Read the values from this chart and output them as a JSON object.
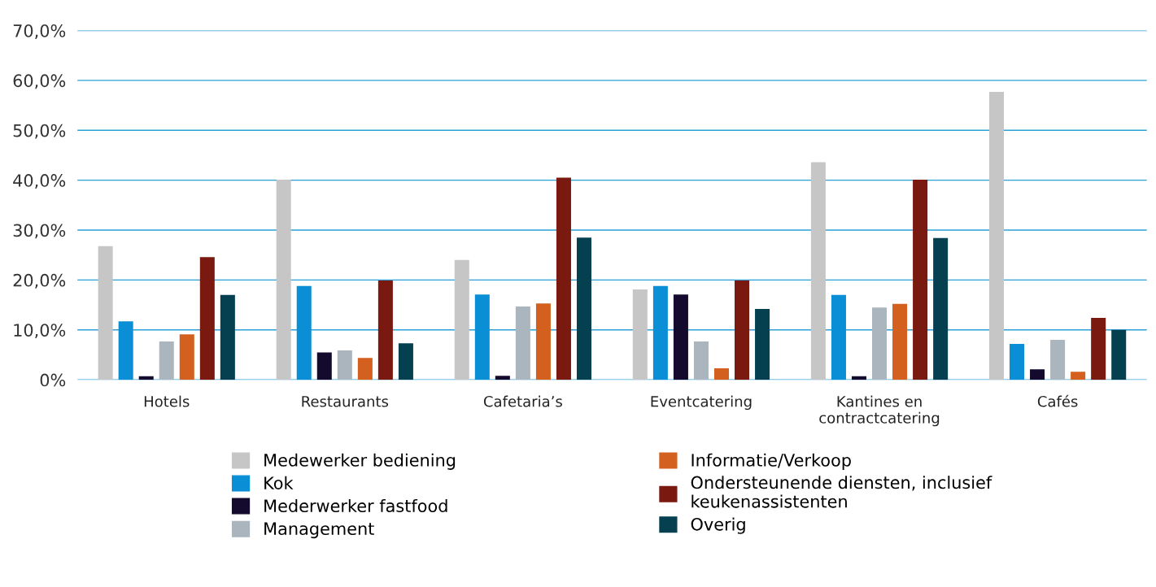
{
  "chart_data": {
    "type": "bar",
    "categories": [
      "Hotels",
      "Restaurants",
      "Cafetaria’s",
      "Eventcatering",
      "Kantines en\ncontractcatering",
      "Cafés"
    ],
    "series": [
      {
        "name": "Medewerker bediening",
        "color": "#c6c6c6",
        "values": [
          26.8,
          40.1,
          24.0,
          18.1,
          43.6,
          57.7
        ]
      },
      {
        "name": "Kok",
        "color": "#0a8fd6",
        "values": [
          11.7,
          18.8,
          17.1,
          18.8,
          17.0,
          7.2
        ]
      },
      {
        "name": "Mederwerker fastfood",
        "color": "#140a2e",
        "values": [
          0.7,
          5.5,
          0.8,
          17.1,
          0.7,
          2.1
        ]
      },
      {
        "name": "Management",
        "color": "#aab5bd",
        "values": [
          7.7,
          5.9,
          14.7,
          7.7,
          14.5,
          8.0
        ]
      },
      {
        "name": "Informatie/Verkoop",
        "color": "#d3601f",
        "values": [
          9.1,
          4.4,
          15.3,
          2.3,
          15.2,
          1.6
        ]
      },
      {
        "name": "Ondersteunende diensten, inclusief\nkeukenassistenten",
        "color": "#7a190f",
        "values": [
          24.6,
          19.9,
          40.5,
          19.9,
          40.1,
          12.4
        ]
      },
      {
        "name": "Overig",
        "color": "#054050",
        "values": [
          17.0,
          7.3,
          28.5,
          14.2,
          28.4,
          10.0
        ]
      }
    ],
    "ylim": [
      0,
      70
    ],
    "yticks": [
      {
        "value": 0,
        "label": "0%"
      },
      {
        "value": 10,
        "label": "10,0%"
      },
      {
        "value": 20,
        "label": "20,0%"
      },
      {
        "value": 30,
        "label": "30,0%"
      },
      {
        "value": 40,
        "label": "40,0%"
      },
      {
        "value": 50,
        "label": "50,0%"
      },
      {
        "value": 60,
        "label": "60,0%"
      },
      {
        "value": 70,
        "label": "70,0%"
      }
    ],
    "grid": "y",
    "legend": "bottom"
  }
}
